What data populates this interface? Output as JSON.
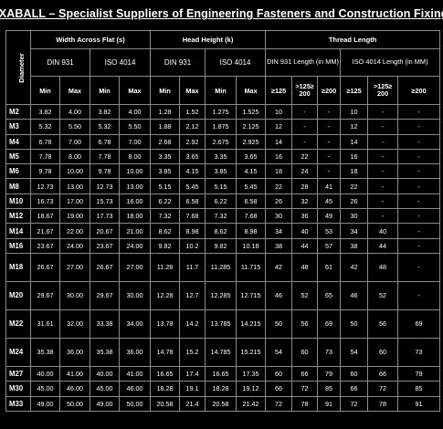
{
  "title": "FIXABALL – Specialist Suppliers of Engineering Fasteners and Construction  Fixings",
  "headers": {
    "diameter": "Diameter",
    "groups": [
      "Width Across Flat (s)",
      "Head Height (k)",
      "Thread Length"
    ],
    "standards": [
      "DIN 931",
      "ISO 4014",
      "DIN 931",
      "ISO 4014",
      "DIN 931 Length (in MM)",
      "ISO 4014 Length (in MM)"
    ],
    "cols": [
      "Min",
      "Max",
      "Min",
      "Max",
      "Min",
      "Max",
      "Min",
      "Max",
      "≥125",
      ">125≥ 200",
      "≥200",
      "≥125",
      ">125≥ 200",
      "≥200"
    ]
  },
  "rows": [
    [
      "M2",
      "3.82",
      "4.00",
      "3.82",
      "4.00",
      "1.28",
      "1.52",
      "1.275",
      "1.525",
      "10",
      "-",
      "-",
      "10",
      "-",
      "-"
    ],
    [
      "M3",
      "5.32",
      "5.50",
      "5.32",
      "5.50",
      "1.88",
      "2.12",
      "1.875",
      "2.125",
      "12",
      "-",
      "-",
      "12",
      "-",
      "-"
    ],
    [
      "M4",
      "6.78",
      "7.00",
      "6.78",
      "7.00",
      "2.68",
      "2.92",
      "2.675",
      "2.925",
      "14",
      "-",
      "-",
      "14",
      "-",
      "-"
    ],
    [
      "M5",
      "7.78",
      "8.00",
      "7.78",
      "8.00",
      "3.35",
      "3.65",
      "3.35",
      "3.65",
      "16",
      "22",
      "-",
      "16",
      "-",
      "-"
    ],
    [
      "M6",
      "9.78",
      "10.00",
      "9.78",
      "10.00",
      "3.85",
      "4.15",
      "3.85",
      "4.15",
      "18",
      "24",
      "-",
      "18",
      "-",
      "-"
    ],
    [
      "M8",
      "12.73",
      "13.00",
      "12.73",
      "13.00",
      "5.15",
      "5.45",
      "5.15",
      "5.45",
      "22",
      "28",
      "41",
      "22",
      "-",
      "-"
    ],
    [
      "M10",
      "16.73",
      "17.00",
      "15.73",
      "16.00",
      "6.22",
      "6.58",
      "6.22",
      "6.58",
      "26",
      "32",
      "45",
      "26",
      "-",
      "-"
    ],
    [
      "M12",
      "18.67",
      "19.00",
      "17.73",
      "18.00",
      "7.32",
      "7.68",
      "7.32",
      "7.68",
      "30",
      "36",
      "49",
      "30",
      "-",
      "-"
    ],
    [
      "M14",
      "21.67",
      "22.00",
      "20.67",
      "21.00",
      "8.62",
      "8.98",
      "8.62",
      "8.98",
      "34",
      "40",
      "53",
      "34",
      "40",
      "-"
    ],
    [
      "M16",
      "23.67",
      "24.00",
      "23.67",
      "24.00",
      "9.82",
      "10.2",
      "9.82",
      "10.18",
      "38",
      "44",
      "57",
      "38",
      "44",
      "-"
    ],
    [
      "M18",
      "26.67",
      "27.00",
      "26.67",
      "27.00",
      "11.28",
      "11.7",
      "11.285",
      "11.715",
      "42",
      "48",
      "61",
      "42",
      "48",
      "-"
    ],
    [
      "M20",
      "29.67",
      "30.00",
      "29.67",
      "30.00",
      "12.28",
      "12.7",
      "12.285",
      "12.715",
      "46",
      "52",
      "65",
      "46",
      "52",
      "-"
    ],
    [
      "M22",
      "31.61",
      "32.00",
      "33.38",
      "34.00",
      "13.78",
      "14.2",
      "13.785",
      "14.215",
      "50",
      "56",
      "69",
      "50",
      "56",
      "69"
    ],
    [
      "M24",
      "35.38",
      "36.00",
      "35.38",
      "36.00",
      "14.78",
      "15.2",
      "14.785",
      "15.215",
      "54",
      "60",
      "73",
      "54",
      "60",
      "73"
    ],
    [
      "M27",
      "40.00",
      "41.00",
      "40.00",
      "41.00",
      "16.65",
      "17.4",
      "16.65",
      "17.35",
      "60",
      "66",
      "79",
      "60",
      "66",
      "79"
    ],
    [
      "M30",
      "45.00",
      "46.00",
      "45.00",
      "46.00",
      "18.28",
      "19.1",
      "18.28",
      "19.12",
      "66",
      "72",
      "85",
      "66",
      "72",
      "85"
    ],
    [
      "M33",
      "49.00",
      "50.00",
      "49.00",
      "50.00",
      "20.58",
      "21.4",
      "20.58",
      "21.42",
      "72",
      "78",
      "91",
      "72",
      "78",
      "91"
    ]
  ]
}
